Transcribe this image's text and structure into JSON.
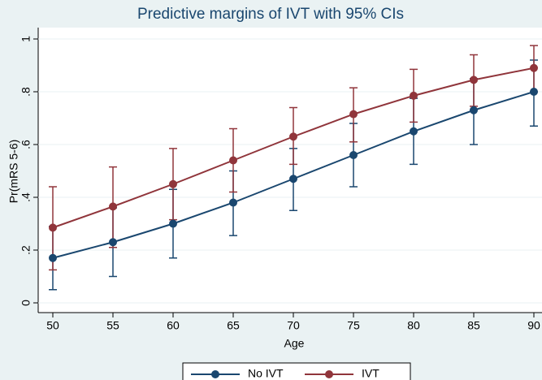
{
  "chart_data": {
    "type": "line",
    "title": "Predictive margins of IVT with 95% CIs",
    "x_label": "Age",
    "y_label": "Pr(mRS 5-6)",
    "x": [
      50,
      55,
      60,
      65,
      70,
      75,
      80,
      85,
      90
    ],
    "series": [
      {
        "name": "No IVT",
        "color": "#1a476f",
        "values": [
          0.17,
          0.23,
          0.3,
          0.38,
          0.47,
          0.56,
          0.65,
          0.73,
          0.8
        ],
        "ci_lower": [
          0.05,
          0.1,
          0.17,
          0.255,
          0.35,
          0.44,
          0.525,
          0.6,
          0.67
        ],
        "ci_upper": [
          0.29,
          0.36,
          0.43,
          0.5,
          0.585,
          0.68,
          0.775,
          0.85,
          0.92
        ]
      },
      {
        "name": "IVT",
        "color": "#90353b",
        "values": [
          0.285,
          0.365,
          0.45,
          0.54,
          0.63,
          0.715,
          0.785,
          0.845,
          0.89
        ],
        "ci_lower": [
          0.125,
          0.21,
          0.315,
          0.42,
          0.525,
          0.61,
          0.685,
          0.745,
          0.8
        ],
        "ci_upper": [
          0.44,
          0.515,
          0.585,
          0.66,
          0.74,
          0.815,
          0.885,
          0.94,
          0.975
        ]
      }
    ],
    "xlim": [
      50,
      90
    ],
    "xticks": [
      50,
      55,
      60,
      65,
      70,
      75,
      80,
      85,
      90
    ],
    "ylim": [
      0,
      1
    ],
    "yticks": [
      0,
      {
        "value": 0.2,
        "label": ".2"
      },
      {
        "value": 0.4,
        "label": ".4"
      },
      {
        "value": 0.6,
        "label": ".6"
      },
      {
        "value": 0.8,
        "label": ".8"
      },
      1
    ],
    "grid": true
  }
}
